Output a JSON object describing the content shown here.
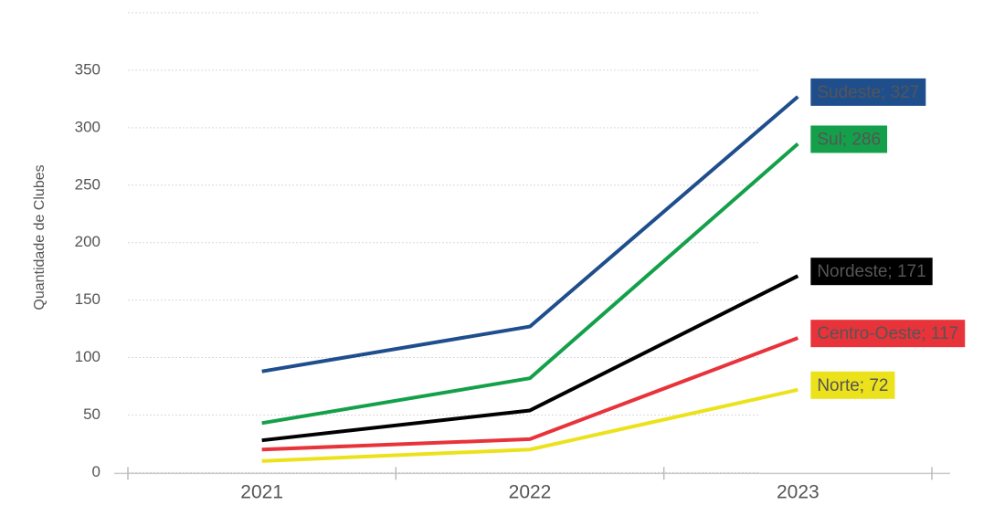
{
  "chart_data": {
    "type": "line",
    "y_label": "Quantidade de Clubes",
    "categories": [
      "2021",
      "2022",
      "2023"
    ],
    "series": [
      {
        "name": "Sudeste",
        "color": "#1f4e8c",
        "values": [
          88,
          127,
          327
        ],
        "value_labels": [
          null,
          null,
          "Sudeste; 327"
        ]
      },
      {
        "name": "Sul",
        "color": "#14a04a",
        "values": [
          43,
          82,
          286
        ],
        "value_labels": [
          null,
          null,
          "Sul; 286"
        ]
      },
      {
        "name": "Nordeste",
        "color": "#000000",
        "values": [
          28,
          54,
          171
        ],
        "value_labels": [
          null,
          null,
          "Nordeste; 171"
        ]
      },
      {
        "name": "Centro-Oeste",
        "color": "#e8333a",
        "values": [
          20,
          29,
          117
        ],
        "value_labels": [
          null,
          null,
          "Centro-Oeste; 117"
        ]
      },
      {
        "name": "Norte",
        "color": "#ece21c",
        "values": [
          10,
          20,
          72
        ],
        "value_labels": [
          null,
          null,
          "Norte; 72"
        ]
      }
    ],
    "ylim": [
      -10,
      400
    ],
    "yticks": [
      0,
      50,
      100,
      150,
      200,
      250,
      300,
      350
    ],
    "grid": true
  }
}
